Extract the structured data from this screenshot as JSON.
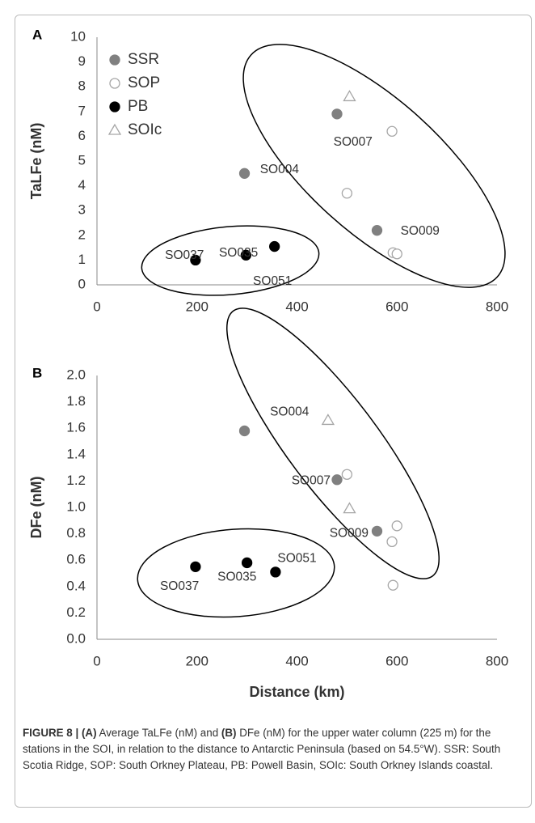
{
  "chart_data": [
    {
      "type": "scatter",
      "panel_label": "A",
      "y_label": "TaLFe (nM)",
      "xlim": [
        0,
        800
      ],
      "xticks": [
        0,
        200,
        400,
        600,
        800
      ],
      "ylim": [
        0,
        10
      ],
      "yticks": [
        0,
        1,
        2,
        3,
        4,
        5,
        6,
        7,
        8,
        9,
        10
      ],
      "legend": "upper left",
      "series": [
        {
          "name": "SSR",
          "marker": "circle",
          "filled": true,
          "color": "#808080",
          "x": [
            295,
            480,
            560
          ],
          "values": [
            4.5,
            6.9,
            2.2
          ]
        },
        {
          "name": "SOP",
          "marker": "circle",
          "filled": false,
          "color": "#a6a6a6",
          "x": [
            500,
            590,
            592,
            600
          ],
          "values": [
            3.7,
            6.2,
            1.3,
            1.25
          ]
        },
        {
          "name": "PB",
          "marker": "circle",
          "filled": true,
          "color": "#000000",
          "x": [
            197,
            298,
            355
          ],
          "values": [
            1.0,
            1.2,
            1.55
          ]
        },
        {
          "name": "SOIc",
          "marker": "triangle",
          "filled": false,
          "color": "#a6a6a6",
          "x": [
            505
          ],
          "values": [
            7.6
          ]
        }
      ],
      "annotations": [
        {
          "text": "SO004",
          "x": 365,
          "y": 4.64
        },
        {
          "text": "SO007",
          "x": 512,
          "y": 5.75
        },
        {
          "text": "SO009",
          "x": 646,
          "y": 2.16
        },
        {
          "text": "SO037",
          "x": 175,
          "y": 1.18
        },
        {
          "text": "SO035",
          "x": 283,
          "y": 1.27
        },
        {
          "text": "SO051",
          "x": 351,
          "y": 0.13
        }
      ]
    },
    {
      "type": "scatter",
      "panel_label": "B",
      "y_label": "DFe (nM)",
      "x_label": "Distance (km)",
      "xlim": [
        0,
        800
      ],
      "xticks": [
        0,
        200,
        400,
        600,
        800
      ],
      "ylim": [
        0,
        2
      ],
      "yticks": [
        {
          "value": 0,
          "label": "0.0"
        },
        0.2,
        0.4,
        0.6,
        0.8,
        {
          "value": 1,
          "label": "1.0"
        },
        1.2,
        1.4,
        1.6,
        1.8,
        {
          "value": 2,
          "label": "2.0"
        }
      ],
      "series": [
        {
          "marker": "circle",
          "filled": true,
          "color": "#808080",
          "x": [
            295,
            480,
            560
          ],
          "values": [
            1.58,
            1.21,
            0.82
          ]
        },
        {
          "marker": "circle",
          "filled": false,
          "color": "#a6a6a6",
          "x": [
            500,
            600,
            590,
            592
          ],
          "values": [
            1.25,
            0.86,
            0.74,
            0.41
          ]
        },
        {
          "marker": "circle",
          "filled": true,
          "color": "#000000",
          "x": [
            197,
            300,
            357
          ],
          "values": [
            0.55,
            0.58,
            0.51
          ]
        },
        {
          "marker": "triangle",
          "filled": false,
          "color": "#a6a6a6",
          "x": [
            462,
            505
          ],
          "values": [
            1.66,
            0.99
          ]
        }
      ],
      "annotations": [
        {
          "text": "SO004",
          "x": 385,
          "y": 1.72
        },
        {
          "text": "SO007",
          "x": 428,
          "y": 1.2
        },
        {
          "text": "SO009",
          "x": 504,
          "y": 0.8
        },
        {
          "text": "SO037",
          "x": 165,
          "y": 0.4
        },
        {
          "text": "SO035",
          "x": 280,
          "y": 0.47
        },
        {
          "text": "SO051",
          "x": 400,
          "y": 0.61
        }
      ]
    }
  ],
  "caption": [
    {
      "text": "FIGURE 8 | (A)",
      "bold": true
    },
    {
      "text": " Average TaLFe (nM) and ",
      "bold": false
    },
    {
      "text": "(B)",
      "bold": true
    },
    {
      "text": " DFe (nM) for the upper water column (225 m) for the stations in the SOI, in relation to the distance to Antarctic Peninsula (based on 54.5°W). SSR: South Scotia Ridge, SOP: South Orkney Plateau, PB: Powell Basin, SOIc: South Orkney Islands coastal.",
      "bold": false
    }
  ]
}
